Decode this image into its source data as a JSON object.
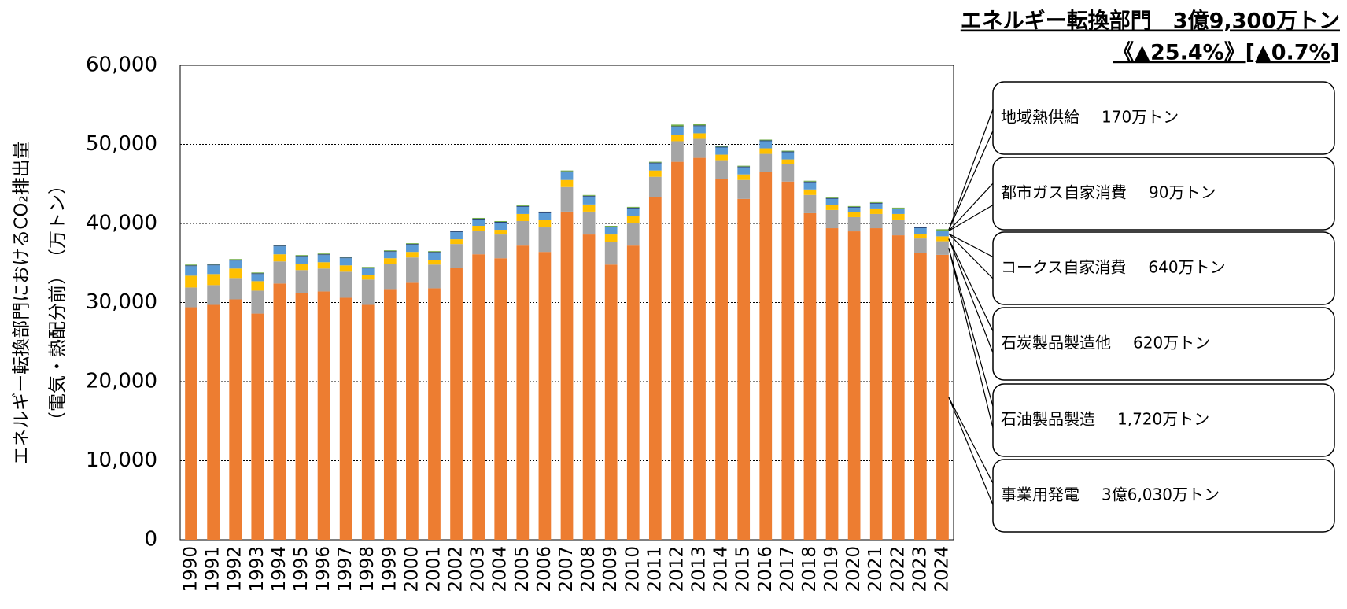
{
  "chart_data": {
    "type": "stacked_bar",
    "title": "エネルギー転換部門　3億9,300万トン",
    "subtitle": "《▲25.4%》[▲0.7%]",
    "y_label": "エネルギー転換部門におけるCO₂排出量",
    "y_label_2": "（電気・熱配分前）　（万トン）",
    "categories": [
      "1990",
      "1991",
      "1992",
      "1993",
      "1994",
      "1995",
      "1996",
      "1997",
      "1998",
      "1999",
      "2000",
      "2001",
      "2002",
      "2003",
      "2004",
      "2005",
      "2006",
      "2007",
      "2008",
      "2009",
      "2010",
      "2011",
      "2012",
      "2013",
      "2014",
      "2015",
      "2016",
      "2017",
      "2018",
      "2019",
      "2020",
      "2021",
      "2022",
      "2023",
      "2024"
    ],
    "ylim": [
      0,
      60000
    ],
    "yticks": [
      0,
      {
        "value": 10000,
        "label": "10,000"
      },
      {
        "value": 20000,
        "label": "20,000"
      },
      {
        "value": 30000,
        "label": "30,000"
      },
      {
        "value": 40000,
        "label": "40,000"
      },
      {
        "value": 50000,
        "label": "50,000"
      },
      {
        "value": 60000,
        "label": "60,000"
      }
    ],
    "grid": true,
    "series": [
      {
        "name": "事業用発電",
        "callout": "3億6,030万トン",
        "color": "#ed7d31",
        "values": [
          29400,
          29700,
          30400,
          28600,
          32400,
          31200,
          31400,
          30600,
          29700,
          31700,
          32500,
          31800,
          34400,
          36100,
          35600,
          37200,
          36400,
          41500,
          38600,
          34800,
          37200,
          43300,
          47800,
          48300,
          45600,
          43100,
          46500,
          45300,
          41300,
          39400,
          39000,
          39400,
          38500,
          36300,
          36030
        ]
      },
      {
        "name": "石油製品製造",
        "callout": "1,720万トン",
        "color": "#a5a5a5",
        "values": [
          2500,
          2500,
          2700,
          2900,
          2800,
          2900,
          2900,
          3300,
          3200,
          3200,
          3200,
          3000,
          3000,
          3000,
          3000,
          3100,
          3100,
          3100,
          2900,
          2900,
          2800,
          2600,
          2600,
          2400,
          2400,
          2400,
          2300,
          2200,
          2300,
          2300,
          1800,
          1800,
          2000,
          1800,
          1720
        ]
      },
      {
        "name": "石炭製品製造他",
        "callout": "620万トン",
        "color": "#ffc000",
        "values": [
          1500,
          1400,
          1200,
          1200,
          900,
          800,
          800,
          800,
          600,
          700,
          700,
          600,
          600,
          600,
          600,
          900,
          900,
          900,
          900,
          900,
          900,
          800,
          800,
          700,
          700,
          700,
          700,
          600,
          700,
          600,
          600,
          700,
          700,
          600,
          620
        ]
      },
      {
        "name": "コークス自家消費",
        "callout": "640万トン",
        "color": "#5b9bd5",
        "values": [
          1200,
          1100,
          1000,
          900,
          1000,
          900,
          900,
          900,
          800,
          800,
          900,
          900,
          900,
          800,
          900,
          900,
          900,
          1000,
          1000,
          900,
          1000,
          900,
          1000,
          900,
          900,
          900,
          900,
          900,
          900,
          800,
          600,
          600,
          600,
          700,
          640
        ]
      },
      {
        "name": "都市ガス自家消費",
        "callout": "90万トン",
        "color": "#264478",
        "values": [
          100,
          100,
          100,
          100,
          100,
          100,
          100,
          100,
          100,
          100,
          100,
          100,
          100,
          100,
          100,
          100,
          100,
          100,
          100,
          100,
          100,
          100,
          100,
          100,
          100,
          100,
          100,
          100,
          100,
          100,
          100,
          100,
          100,
          100,
          90
        ]
      },
      {
        "name": "地域熱供給",
        "callout": "170万トン",
        "color": "#70ad47",
        "values": [
          100,
          100,
          100,
          100,
          100,
          100,
          100,
          100,
          100,
          100,
          100,
          100,
          100,
          100,
          100,
          100,
          100,
          100,
          100,
          100,
          100,
          100,
          200,
          200,
          100,
          100,
          100,
          100,
          100,
          100,
          100,
          100,
          100,
          100,
          170
        ]
      }
    ]
  }
}
